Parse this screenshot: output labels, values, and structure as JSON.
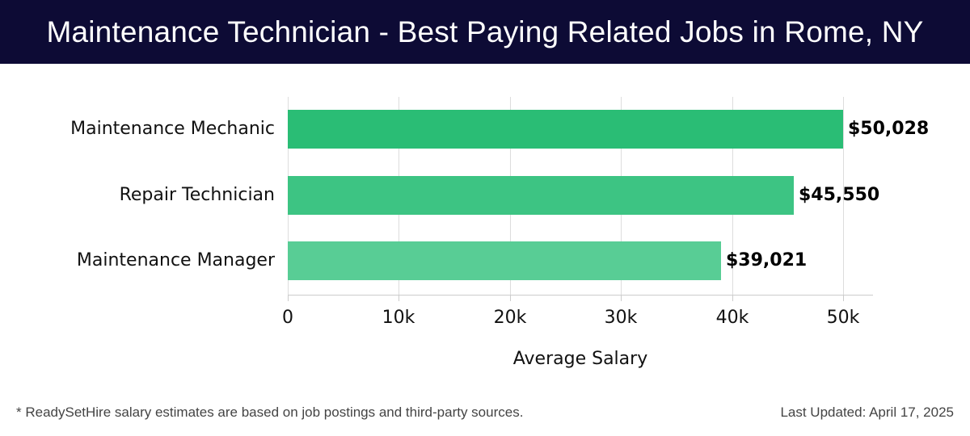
{
  "header": {
    "title": "Maintenance Technician - Best Paying Related Jobs in Rome, NY"
  },
  "chart_data": {
    "type": "bar",
    "orientation": "horizontal",
    "title": "Maintenance Technician - Best Paying Related Jobs in Rome, NY",
    "categories": [
      "Maintenance Mechanic",
      "Repair Technician",
      "Maintenance Manager"
    ],
    "values": [
      50028,
      45550,
      39021
    ],
    "value_labels": [
      "$50,028",
      "$45,550",
      "$39,021"
    ],
    "colors": [
      "#2abd75",
      "#3dc483",
      "#58cd95"
    ],
    "xlabel": "Average Salary",
    "ylabel": "",
    "xlim": [
      0,
      52600
    ],
    "x_ticks": [
      0,
      10000,
      20000,
      30000,
      40000,
      50000
    ],
    "x_tick_labels": [
      "0",
      "10k",
      "20k",
      "30k",
      "40k",
      "50k"
    ],
    "grid": "vertical",
    "legend": "none"
  },
  "footer": {
    "note": "* ReadySetHire salary estimates are based on job postings and third-party sources.",
    "last_updated": "Last Updated: April 17, 2025"
  }
}
